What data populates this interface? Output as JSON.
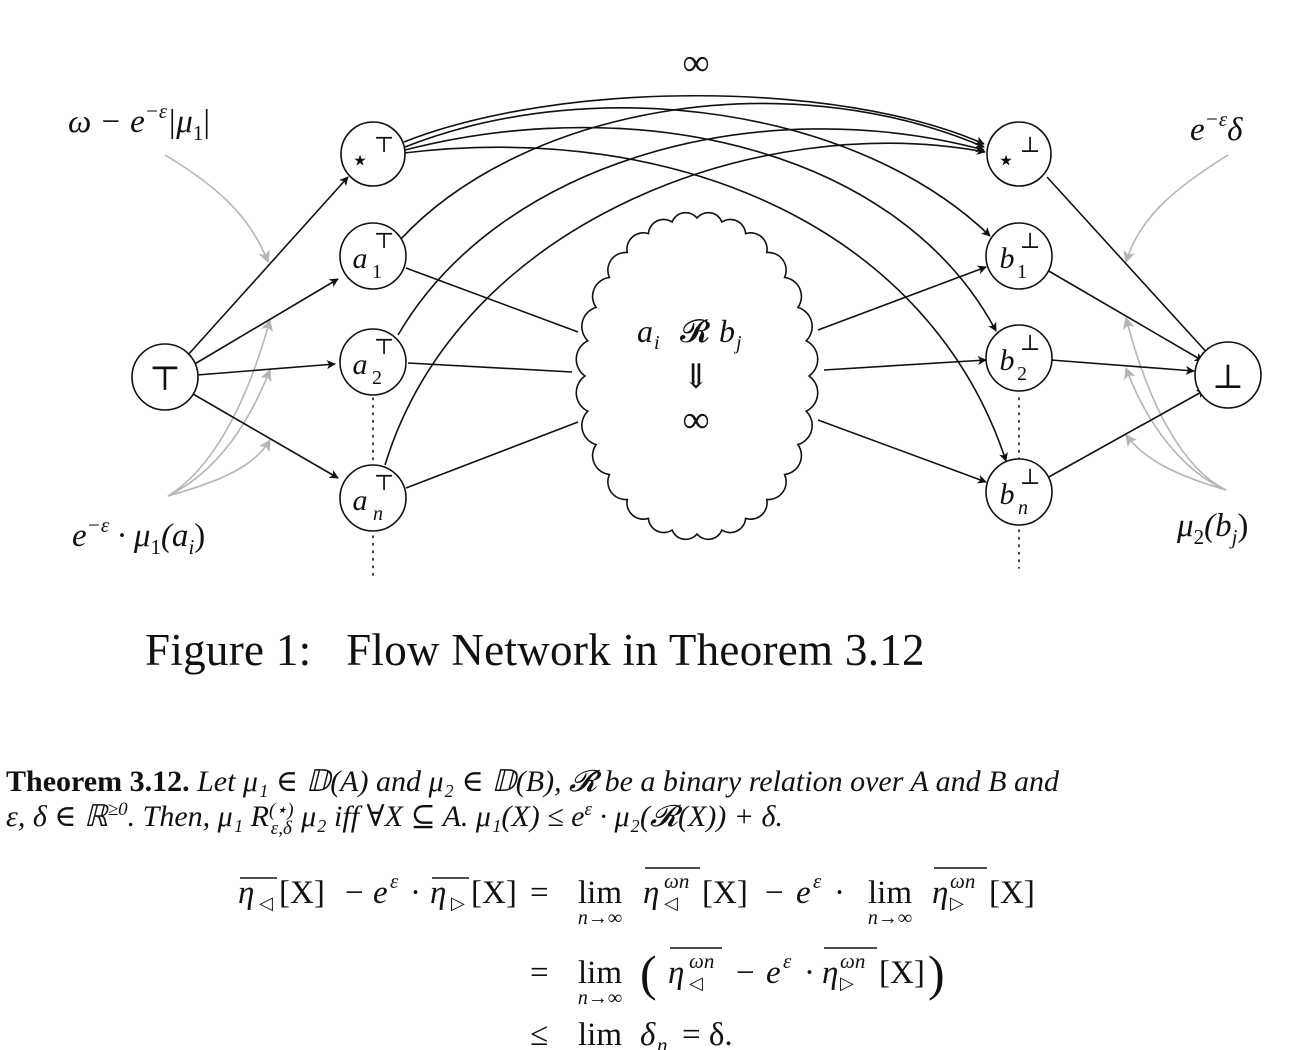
{
  "diagram": {
    "labels": {
      "top_left": "ω − e",
      "top_left_sup": "−ε",
      "top_left_tail": "|μ",
      "top_left_sub": "1",
      "top_left_close": "|",
      "top_right": "e",
      "top_right_sup": "−ε",
      "top_right_tail": "δ",
      "bottom_left": "e",
      "bottom_left_sup": "−ε",
      "bottom_left_tail": " · μ",
      "bottom_left_sub": "1",
      "bottom_left_close": "(a",
      "bottom_left_sub2": "i",
      "bottom_left_end": ")",
      "bottom_right": "μ",
      "bottom_right_sub": "2",
      "bottom_right_close": "(b",
      "bottom_right_sub2": "j",
      "bottom_right_end": ")",
      "infinity_top": "∞",
      "cloud_line1_a": "a",
      "cloud_line1_i": "i",
      "cloud_line1_R": "𝓡",
      "cloud_line1_b": "b",
      "cloud_line1_j": "j",
      "cloud_line2": "⇓",
      "cloud_line3": "∞"
    },
    "nodes": {
      "source": "⊤",
      "sink": "⊥",
      "star_top": "⋆",
      "star_top_sup": "⊤",
      "star_bot": "⋆",
      "star_bot_sup": "⊥",
      "a": "a",
      "a1_sub": "1",
      "a2_sub": "2",
      "an_sub": "n",
      "a_sup": "⊤",
      "b": "b",
      "b1_sub": "1",
      "b2_sub": "2",
      "bn_sub": "n",
      "b_sup": "⊥"
    }
  },
  "caption": {
    "label": "Figure 1:",
    "text": "Flow Network in Theorem 3.12"
  },
  "theorem": {
    "title": "Theorem 3.12.",
    "line1": "Let μ₁ ∈ 𝔻(A) and μ₂ ∈ 𝔻(B), 𝓡̂ be a binary relation over A and B and",
    "line2_a": "ε, δ ∈ ℝ",
    "line2_sup": "≥0",
    "line2_b": ". Then, μ₁ R",
    "line2_rsup": "(⋆)",
    "line2_rsub": "ε,δ",
    "line2_c": " μ₂ iff ∀X ⊆ A. μ₁(X) ≤ e",
    "line2_esup": "ε",
    "line2_d": " · μ₂(𝓡(X)) + δ."
  },
  "equation": {
    "row1_lhs": "η◁[X] − e^ε · η▷[X]",
    "row1_rhs": "= lim η◁^ωn[X] − e^ε · lim η▷^ωn[X]",
    "row2": "= lim (η◁^ωn − e^ε · η▷^ωn[X])",
    "row3": "≤ lim δn = δ.",
    "lim": "lim",
    "lim_sub": "n→∞",
    "eq": "=",
    "le": "≤",
    "minus": "−",
    "cdot": "·",
    "e": "e",
    "eps": "ε",
    "eta": "η",
    "left_tri": "◁",
    "right_tri": "▷",
    "omega_n": "ωn",
    "X": "[X]",
    "delta_n": "δ",
    "delta_n_sub": "n",
    "delta_end": "= δ.",
    "lparen": "(",
    "rparen": ")"
  }
}
